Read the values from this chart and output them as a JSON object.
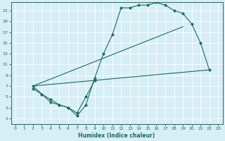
{
  "xlabel": "Humidex (Indice chaleur)",
  "bg_color": "#d6eef5",
  "grid_color": "#c0dde8",
  "line_color": "#1a6b5e",
  "xlim": [
    -0.5,
    23.5
  ],
  "ylim": [
    0,
    22.5
  ],
  "xticks": [
    0,
    1,
    2,
    3,
    4,
    5,
    6,
    7,
    8,
    9,
    10,
    11,
    12,
    13,
    14,
    15,
    16,
    17,
    18,
    19,
    20,
    21,
    22,
    23
  ],
  "yticks": [
    1,
    3,
    5,
    7,
    9,
    11,
    13,
    15,
    17,
    19,
    21
  ],
  "curve_main": {
    "x": [
      2,
      3,
      4,
      5,
      6,
      7,
      8,
      9,
      10,
      11,
      12,
      13,
      14,
      15,
      16,
      17,
      18,
      19,
      20,
      21,
      22
    ],
    "y": [
      7,
      5.5,
      4.5,
      3.5,
      3,
      1.5,
      3.5,
      8.5,
      13,
      16.5,
      21.5,
      21.5,
      22,
      22,
      22.5,
      22,
      21,
      20.5,
      18.5,
      15,
      10
    ]
  },
  "curve_bottom": {
    "x": [
      2,
      3,
      4,
      5,
      6,
      7,
      8,
      9
    ],
    "y": [
      6.5,
      5.5,
      4,
      3.5,
      3,
      2,
      5,
      8
    ]
  },
  "line_low": {
    "x": [
      2,
      22
    ],
    "y": [
      7,
      10
    ]
  },
  "line_high": {
    "x": [
      2,
      19
    ],
    "y": [
      7,
      18
    ]
  }
}
